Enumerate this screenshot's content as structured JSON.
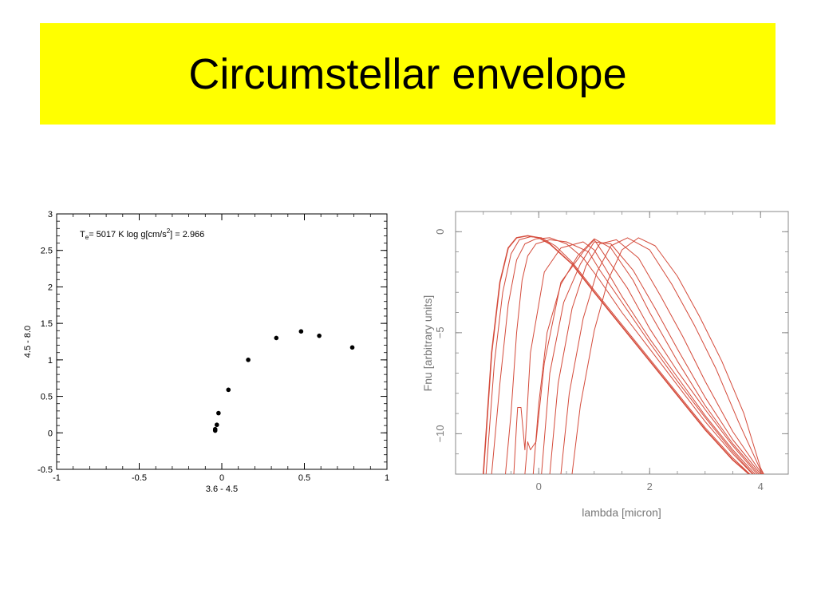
{
  "slide": {
    "title": "Circumstellar envelope"
  },
  "colors": {
    "banner": "#ffff00",
    "left_points": "#000000",
    "right_curves": "#d44a3a"
  },
  "chart_data": [
    {
      "type": "scatter",
      "xlabel": "3.6 - 4.5",
      "ylabel": "4.5 - 8.0",
      "annotation": {
        "prefix": "T",
        "sub": "e",
        "middle": "= 5017 K  log g[cm/s",
        "sup": "2",
        "suffix": "] = 2.966"
      },
      "xlim": [
        -1,
        1
      ],
      "ylim": [
        -0.5,
        3
      ],
      "xticks": [
        -1,
        -0.5,
        0,
        0.5,
        1
      ],
      "xtick_labels": [
        "-1",
        "-0.5",
        "0",
        "0.5",
        "1"
      ],
      "yticks": [
        -0.5,
        0,
        0.5,
        1,
        1.5,
        2,
        2.5,
        3
      ],
      "ytick_labels": [
        "-0.5",
        "0",
        "0.5",
        "1",
        "1.5",
        "2",
        "2.5",
        "3"
      ],
      "grid": false,
      "points": [
        {
          "x": -0.04,
          "y": 0.03
        },
        {
          "x": -0.04,
          "y": 0.05
        },
        {
          "x": -0.03,
          "y": 0.11
        },
        {
          "x": -0.02,
          "y": 0.27
        },
        {
          "x": 0.04,
          "y": 0.59
        },
        {
          "x": 0.16,
          "y": 1.0
        },
        {
          "x": 0.33,
          "y": 1.3
        },
        {
          "x": 0.48,
          "y": 1.39
        },
        {
          "x": 0.59,
          "y": 1.33
        },
        {
          "x": 0.79,
          "y": 1.17
        }
      ]
    },
    {
      "type": "line",
      "xlabel": "lambda [micron]",
      "ylabel": "Fnu [arbitrary units]",
      "xlim": [
        -1.5,
        4.5
      ],
      "ylim": [
        -12,
        1
      ],
      "xticks": [
        0,
        2,
        4
      ],
      "xtick_labels": [
        "0",
        "2",
        "4"
      ],
      "yticks": [
        0,
        -5,
        -10
      ],
      "ytick_labels": [
        "0",
        "−5",
        "−10"
      ],
      "grid": false,
      "series": [
        {
          "x": [
            -1.0,
            -0.85,
            -0.7,
            -0.55,
            -0.4,
            -0.2,
            0.0,
            0.2,
            0.6,
            1.0,
            1.5,
            2.0,
            2.5,
            3.0,
            3.5,
            4.0,
            4.25
          ],
          "y": [
            -12.0,
            -6.0,
            -2.5,
            -0.8,
            -0.3,
            -0.2,
            -0.3,
            -0.6,
            -1.6,
            -3.0,
            -4.7,
            -6.4,
            -8.1,
            -9.8,
            -11.3,
            -12.5,
            -13.0
          ]
        },
        {
          "x": [
            -0.95,
            -0.8,
            -0.65,
            -0.5,
            -0.35,
            -0.15,
            0.05,
            0.3,
            0.6,
            1.0,
            1.5,
            2.0,
            2.5,
            3.0,
            3.5,
            4.0,
            4.25
          ],
          "y": [
            -12.0,
            -6.5,
            -3.0,
            -1.1,
            -0.4,
            -0.25,
            -0.3,
            -0.7,
            -1.5,
            -2.9,
            -4.6,
            -6.3,
            -8.0,
            -9.7,
            -11.2,
            -12.5,
            -13.0
          ]
        },
        {
          "x": [
            -0.85,
            -0.7,
            -0.55,
            -0.4,
            -0.25,
            -0.05,
            0.2,
            0.5,
            0.8,
            1.1,
            1.5,
            2.0,
            2.5,
            3.0,
            3.5,
            4.0,
            4.25
          ],
          "y": [
            -12.0,
            -7.5,
            -3.6,
            -1.4,
            -0.6,
            -0.35,
            -0.3,
            -0.6,
            -1.3,
            -2.4,
            -4.0,
            -5.8,
            -7.6,
            -9.4,
            -11.0,
            -12.4,
            -13.0
          ]
        },
        {
          "x": [
            -0.6,
            -0.5,
            -0.4,
            -0.3,
            -0.2,
            -0.05,
            0.2,
            0.5,
            0.9,
            1.1,
            1.5,
            2.0,
            2.5,
            3.0,
            3.5,
            4.0,
            4.25
          ],
          "y": [
            -12.0,
            -9.0,
            -5.0,
            -2.4,
            -1.2,
            -0.6,
            -0.4,
            -0.5,
            -1.0,
            -1.9,
            -3.5,
            -5.5,
            -7.4,
            -9.2,
            -10.9,
            -12.4,
            -13.0
          ]
        },
        {
          "x": [
            -0.45,
            -0.4,
            -0.38,
            -0.32,
            -0.25,
            -0.15,
            0.1,
            0.4,
            0.8,
            1.0,
            1.2,
            1.5,
            2.0,
            2.5,
            3.0,
            3.5,
            4.0,
            4.25
          ],
          "y": [
            -12.0,
            -9.5,
            -8.7,
            -8.7,
            -10.8,
            -6.0,
            -2.0,
            -0.8,
            -0.5,
            -0.9,
            -1.8,
            -3.2,
            -5.3,
            -7.2,
            -9.1,
            -10.8,
            -12.3,
            -13.0
          ]
        },
        {
          "x": [
            -0.25,
            -0.2,
            -0.15,
            -0.05,
            0.1,
            0.4,
            0.8,
            1.0,
            1.2,
            1.6,
            2.0,
            2.5,
            3.0,
            3.5,
            4.0,
            4.25
          ],
          "y": [
            -12.0,
            -10.4,
            -10.8,
            -10.4,
            -6.5,
            -2.5,
            -1.0,
            -0.4,
            -1.2,
            -2.8,
            -4.8,
            -6.9,
            -8.8,
            -10.6,
            -12.2,
            -13.0
          ]
        },
        {
          "x": [
            -0.1,
            0.0,
            0.15,
            0.4,
            0.7,
            1.0,
            1.3,
            1.7,
            2.0,
            2.5,
            3.0,
            3.5,
            4.0,
            4.25
          ],
          "y": [
            -12.0,
            -8.5,
            -5.0,
            -2.6,
            -1.2,
            -0.35,
            -0.8,
            -2.4,
            -4.0,
            -6.4,
            -8.6,
            -10.5,
            -12.1,
            -13.0
          ]
        },
        {
          "x": [
            0.05,
            0.2,
            0.45,
            0.75,
            1.0,
            1.3,
            1.7,
            2.1,
            2.5,
            3.0,
            3.5,
            4.0,
            4.25
          ],
          "y": [
            -12.0,
            -7.0,
            -3.5,
            -1.6,
            -0.5,
            -0.6,
            -1.9,
            -3.8,
            -5.8,
            -8.2,
            -10.3,
            -12.0,
            -13.0
          ]
        },
        {
          "x": [
            0.2,
            0.35,
            0.6,
            0.85,
            1.1,
            1.4,
            1.8,
            2.2,
            2.6,
            3.0,
            3.5,
            4.0,
            4.25
          ],
          "y": [
            -12.0,
            -7.5,
            -3.8,
            -1.7,
            -0.6,
            -0.4,
            -1.3,
            -3.2,
            -5.2,
            -7.4,
            -9.9,
            -11.9,
            -13.0
          ]
        },
        {
          "x": [
            0.4,
            0.55,
            0.8,
            1.05,
            1.3,
            1.6,
            2.0,
            2.4,
            2.8,
            3.2,
            3.6,
            4.0,
            4.25
          ],
          "y": [
            -12.0,
            -8.0,
            -4.3,
            -2.0,
            -0.7,
            -0.3,
            -0.9,
            -2.6,
            -4.6,
            -6.8,
            -9.4,
            -11.8,
            -13.0
          ]
        },
        {
          "x": [
            0.6,
            0.75,
            1.0,
            1.25,
            1.5,
            1.8,
            2.1,
            2.5,
            2.9,
            3.3,
            3.7,
            4.0,
            4.25
          ],
          "y": [
            -12.0,
            -8.6,
            -4.9,
            -2.4,
            -0.9,
            -0.3,
            -0.7,
            -2.2,
            -4.2,
            -6.4,
            -9.0,
            -11.7,
            -13.0
          ]
        }
      ]
    }
  ]
}
